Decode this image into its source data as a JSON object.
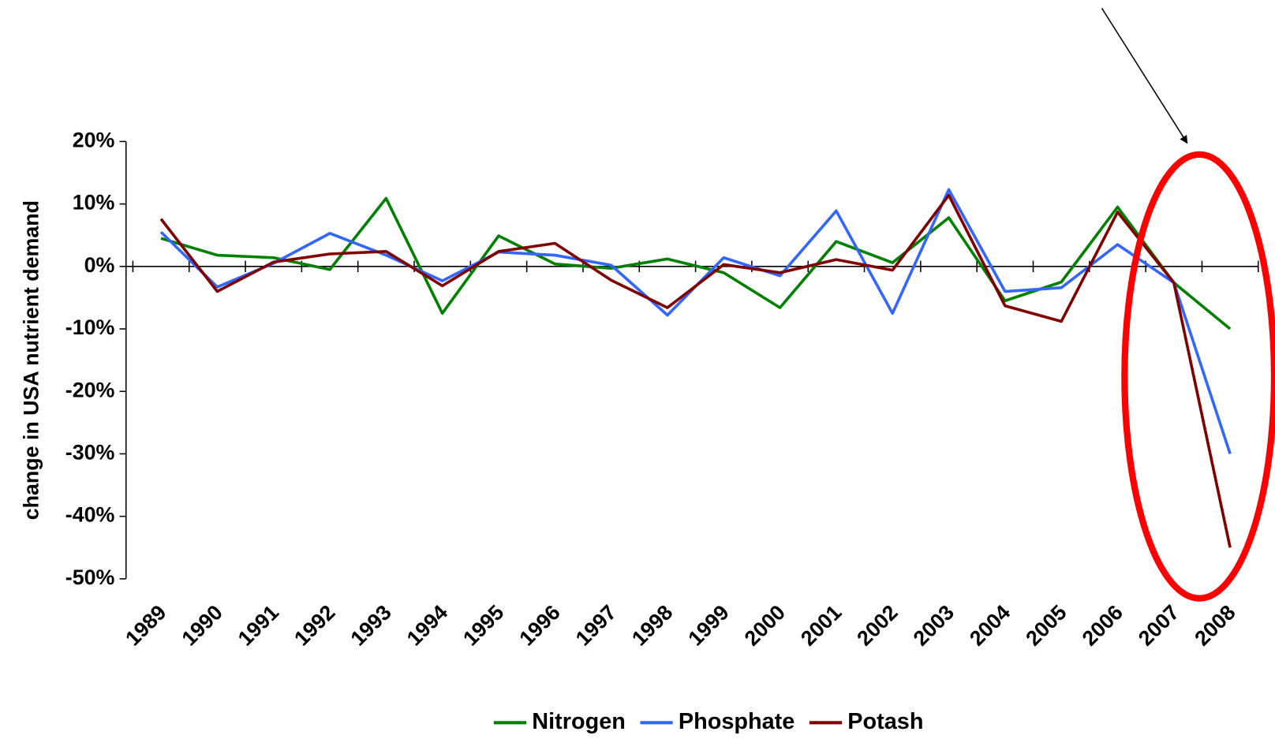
{
  "chart_data": {
    "type": "line",
    "y_label": "change in USA nutrient demand",
    "categories": [
      "1989",
      "1990",
      "1991",
      "1992",
      "1993",
      "1994",
      "1995",
      "1996",
      "1997",
      "1998",
      "1999",
      "2000",
      "2001",
      "2002",
      "2003",
      "2004",
      "2005",
      "2006",
      "2007",
      "2008"
    ],
    "series": [
      {
        "name": "Nitrogen",
        "color": "#008000",
        "values": [
          4.5,
          1.8,
          1.4,
          -0.5,
          10.9,
          -7.5,
          4.9,
          0.4,
          -0.3,
          1.2,
          -1,
          -6.6,
          4,
          0.6,
          7.8,
          -5.5,
          -2.5,
          9.5,
          -2.6,
          -10
        ]
      },
      {
        "name": "Phosphate",
        "color": "#3366ff",
        "values": [
          5.5,
          -3.3,
          0.5,
          5.3,
          1.8,
          -2.3,
          2.3,
          1.8,
          0.2,
          -7.8,
          1.4,
          -1.5,
          8.9,
          -7.5,
          12.3,
          -4,
          -3.4,
          3.5,
          -2.6,
          -30
        ]
      },
      {
        "name": "Potash",
        "color": "#800000",
        "values": [
          7.6,
          -4,
          0.7,
          2,
          2.4,
          -3.1,
          2.4,
          3.7,
          -2.2,
          -6.6,
          0.3,
          -1,
          1.1,
          -0.6,
          11.4,
          -6.3,
          -8.8,
          8.7,
          -2.6,
          -45
        ]
      }
    ],
    "ylim": [
      -50,
      20
    ],
    "yticks": [
      {
        "value": 20,
        "label": "20%"
      },
      {
        "value": 10,
        "label": "10%"
      },
      {
        "value": 0,
        "label": "0%"
      },
      {
        "value": -10,
        "label": "-10%"
      },
      {
        "value": -20,
        "label": "-20%"
      },
      {
        "value": -30,
        "label": "-30%"
      },
      {
        "value": -40,
        "label": "-40%"
      },
      {
        "value": -50,
        "label": "-50%"
      }
    ],
    "legend": "bottom"
  }
}
